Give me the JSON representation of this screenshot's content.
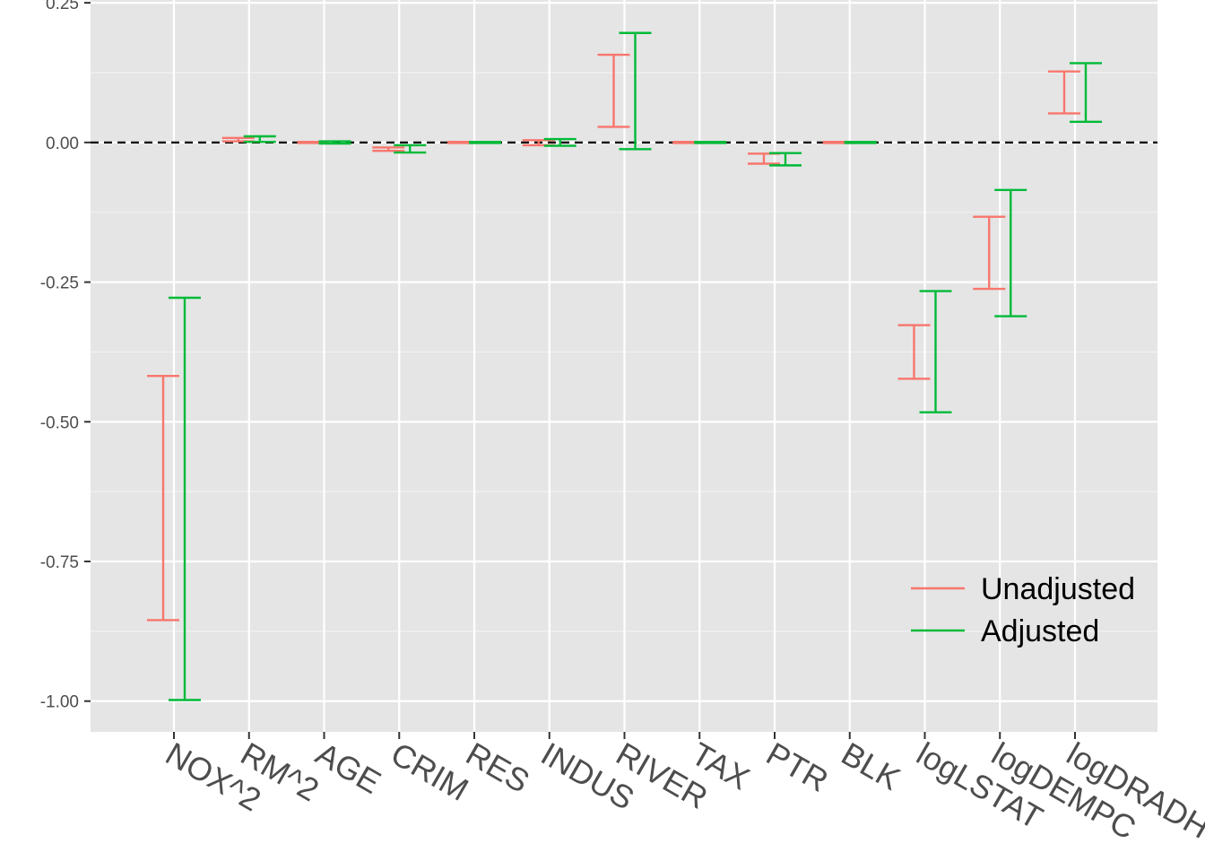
{
  "chart_data": {
    "type": "errorbar",
    "title": "",
    "xlabel": "",
    "ylabel": "",
    "categories": [
      "NOX^2",
      "RM^2",
      "AGE",
      "CRIM",
      "RES",
      "INDUS",
      "RIVER",
      "TAX",
      "PTR",
      "BLK",
      "logLSTAT",
      "logDEMPC",
      "logDRADH"
    ],
    "ylim": [
      -1.055,
      0.255
    ],
    "yticks": [
      "0.25",
      "0.00",
      "-0.25",
      "-0.50",
      "-0.75",
      "-1.00"
    ],
    "ytick_values": [
      0.25,
      0.0,
      -0.25,
      -0.5,
      -0.75,
      -1.0
    ],
    "reference_line": 0.0,
    "grid": true,
    "legend_position": "bottom-right",
    "series": [
      {
        "name": "Unadjusted",
        "color": "#F8766D",
        "lower": [
          -0.855,
          0.002,
          -0.001,
          -0.015,
          -0.001,
          -0.005,
          0.028,
          -0.001,
          -0.038,
          -0.001,
          -0.423,
          -0.262,
          0.052
        ],
        "upper": [
          -0.418,
          0.008,
          0.001,
          -0.009,
          0.001,
          0.004,
          0.157,
          0.001,
          -0.02,
          0.001,
          -0.327,
          -0.133,
          0.127
        ]
      },
      {
        "name": "Adjusted",
        "color": "#00BA38",
        "lower": [
          -0.998,
          0.001,
          -0.002,
          -0.018,
          -0.001,
          -0.006,
          -0.012,
          -0.001,
          -0.041,
          -0.001,
          -0.483,
          -0.311,
          0.037
        ],
        "upper": [
          -0.278,
          0.011,
          0.002,
          -0.005,
          0.001,
          0.006,
          0.196,
          0.001,
          -0.019,
          0.001,
          -0.266,
          -0.085,
          0.142
        ]
      }
    ]
  }
}
